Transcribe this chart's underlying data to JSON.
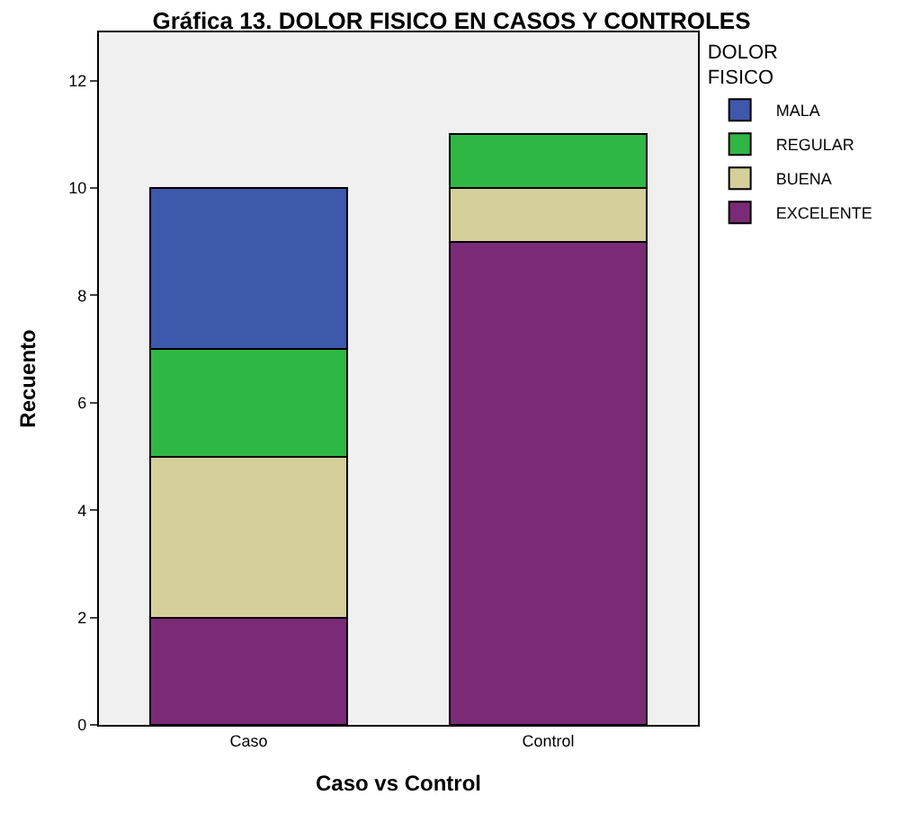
{
  "chart_data": {
    "type": "bar",
    "title": "Gráfica 13. DOLOR FISICO EN CASOS Y CONTROLES",
    "xlabel": "Caso vs Control",
    "ylabel": "Recuento",
    "legend_title": "DOLOR FISICO",
    "categories": [
      "Caso",
      "Control"
    ],
    "stacked": true,
    "series": [
      {
        "name": "EXCELENTE",
        "color": "#7b2a78",
        "values": [
          2,
          9
        ]
      },
      {
        "name": "BUENA",
        "color": "#d5d09a",
        "values": [
          3,
          1
        ]
      },
      {
        "name": "REGULAR",
        "color": "#2fb744",
        "values": [
          2,
          1
        ]
      },
      {
        "name": "MALA",
        "color": "#3e58ac",
        "values": [
          3,
          0
        ]
      }
    ],
    "ylim": [
      0,
      12.9
    ],
    "yticks": [
      0,
      2,
      4,
      6,
      8,
      10,
      12
    ],
    "grid": false,
    "legend": "top right"
  }
}
